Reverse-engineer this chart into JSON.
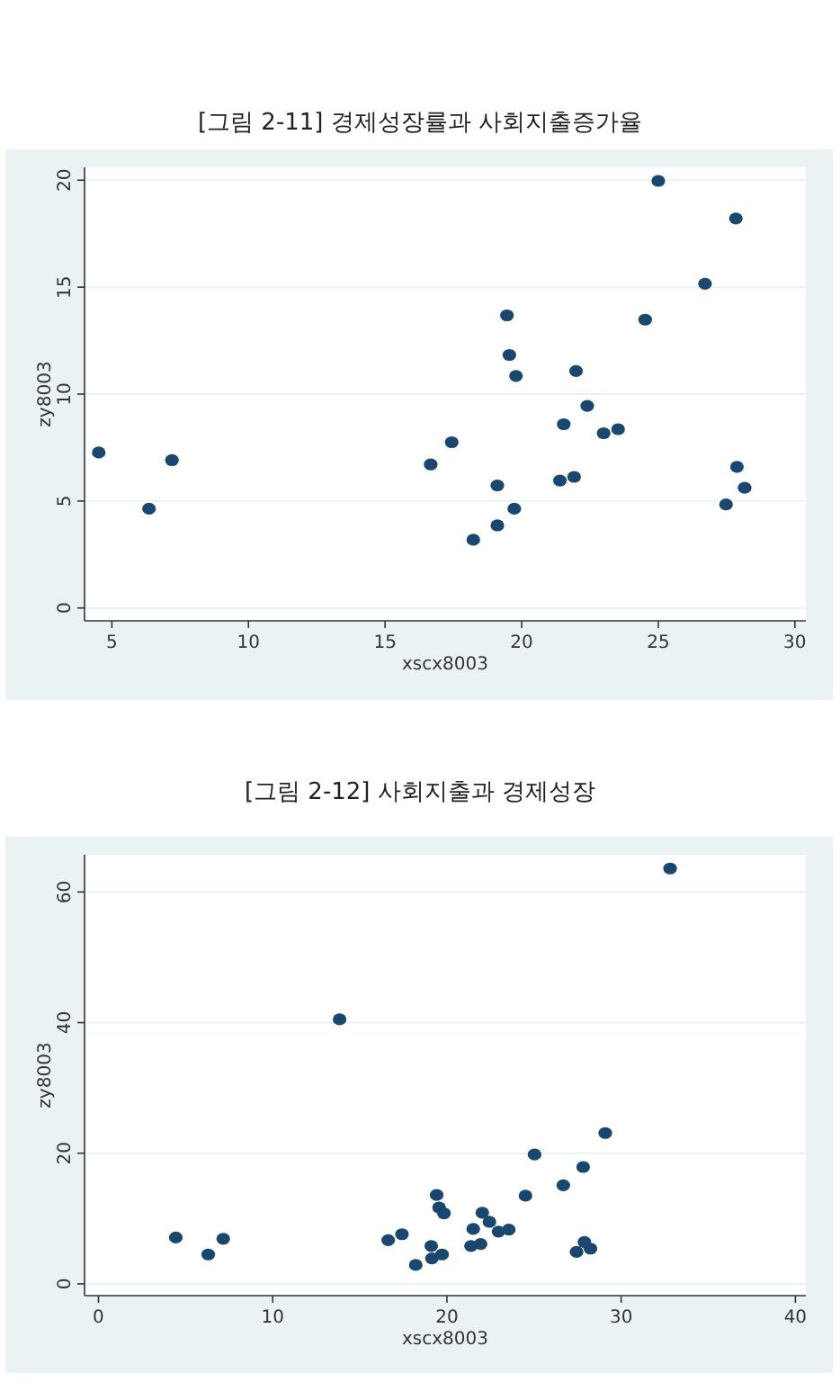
{
  "chart_data": [
    {
      "type": "scatter",
      "title": "[그림 2-11] 경제성장률과 사회지출증가율",
      "xlabel": "xscx8003",
      "ylabel": "zy8003",
      "color": "#1a476f",
      "marker": "circle",
      "grid": "y",
      "x": [
        4.52,
        6.36,
        7.2,
        16.67,
        17.44,
        18.23,
        19.11,
        19.11,
        19.46,
        19.55,
        19.73,
        19.79,
        21.4,
        21.54,
        21.92,
        21.99,
        22.4,
        23.0,
        23.53,
        24.52,
        25.0,
        26.71,
        27.48,
        27.84,
        27.88,
        28.16
      ],
      "values": [
        7.27,
        4.64,
        6.91,
        6.71,
        7.75,
        3.19,
        3.86,
        5.73,
        13.68,
        11.83,
        4.64,
        10.85,
        5.96,
        8.59,
        6.13,
        11.08,
        9.45,
        8.17,
        8.36,
        13.48,
        19.97,
        15.16,
        4.84,
        18.21,
        6.6,
        5.62
      ],
      "xlim": [
        4,
        30.4
      ],
      "ylim": [
        -0.6,
        20.6
      ],
      "xticks": [
        5,
        10,
        15,
        20,
        25,
        30
      ],
      "yticks": [
        0,
        5,
        10,
        15,
        20
      ]
    },
    {
      "type": "scatter",
      "title": "[그림 2-12] 사회지출과 경제성장",
      "xlabel": "xscx8003",
      "ylabel": "zy8003",
      "color": "#1a476f",
      "marker": "circle",
      "grid": "y",
      "x": [
        4.44,
        6.3,
        7.16,
        13.84,
        16.63,
        17.42,
        18.21,
        19.1,
        19.14,
        19.41,
        19.55,
        19.83,
        19.72,
        21.38,
        21.51,
        21.93,
        22.03,
        22.44,
        22.96,
        23.55,
        24.51,
        25.03,
        26.68,
        27.44,
        27.82,
        27.89,
        28.24,
        29.09,
        32.81
      ],
      "values": [
        7.1,
        4.5,
        6.9,
        40.5,
        6.7,
        7.6,
        2.9,
        5.8,
        3.9,
        13.6,
        11.7,
        10.8,
        4.5,
        5.8,
        8.4,
        6.1,
        10.9,
        9.5,
        8.0,
        8.3,
        13.5,
        19.8,
        15.1,
        4.9,
        17.9,
        6.4,
        5.4,
        23.1,
        63.6
      ],
      "xlim": [
        -0.8,
        40.6
      ],
      "ylim": [
        -1.8,
        65.7
      ],
      "xticks": [
        0,
        10,
        20,
        30,
        40
      ],
      "yticks": [
        0,
        20,
        40,
        60
      ]
    }
  ]
}
